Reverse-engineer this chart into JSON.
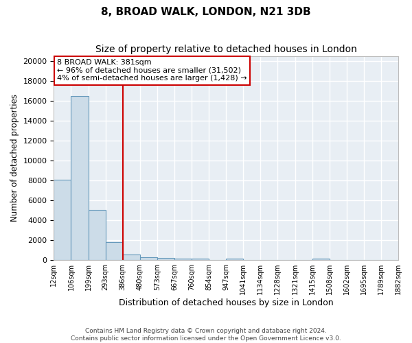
{
  "title": "8, BROAD WALK, LONDON, N21 3DB",
  "subtitle": "Size of property relative to detached houses in London",
  "xlabel": "Distribution of detached houses by size in London",
  "ylabel": "Number of detached properties",
  "bar_labels": [
    "12sqm",
    "106sqm",
    "199sqm",
    "293sqm",
    "386sqm",
    "480sqm",
    "573sqm",
    "667sqm",
    "760sqm",
    "854sqm",
    "947sqm",
    "1041sqm",
    "1134sqm",
    "1228sqm",
    "1321sqm",
    "1415sqm",
    "1508sqm",
    "1602sqm",
    "1695sqm",
    "1789sqm",
    "1882sqm"
  ],
  "bar_values": [
    8050,
    16500,
    5000,
    1800,
    500,
    230,
    150,
    110,
    80,
    0,
    80,
    0,
    0,
    0,
    0,
    80,
    0,
    0,
    0,
    0
  ],
  "bar_color": "#ccdce8",
  "bar_edge_color": "#6699bb",
  "ylim_max": 20500,
  "yticks": [
    0,
    2000,
    4000,
    6000,
    8000,
    10000,
    12000,
    14000,
    16000,
    18000,
    20000
  ],
  "vline_color": "#cc0000",
  "vline_after_bar": 3,
  "annotation_text": "8 BROAD WALK: 381sqm\n← 96% of detached houses are smaller (31,502)\n4% of semi-detached houses are larger (1,428) →",
  "annotation_box_edgecolor": "#cc0000",
  "background_color": "#e8eef4",
  "grid_color": "#ffffff",
  "footer_line1": "Contains HM Land Registry data © Crown copyright and database right 2024.",
  "footer_line2": "Contains public sector information licensed under the Open Government Licence v3.0."
}
